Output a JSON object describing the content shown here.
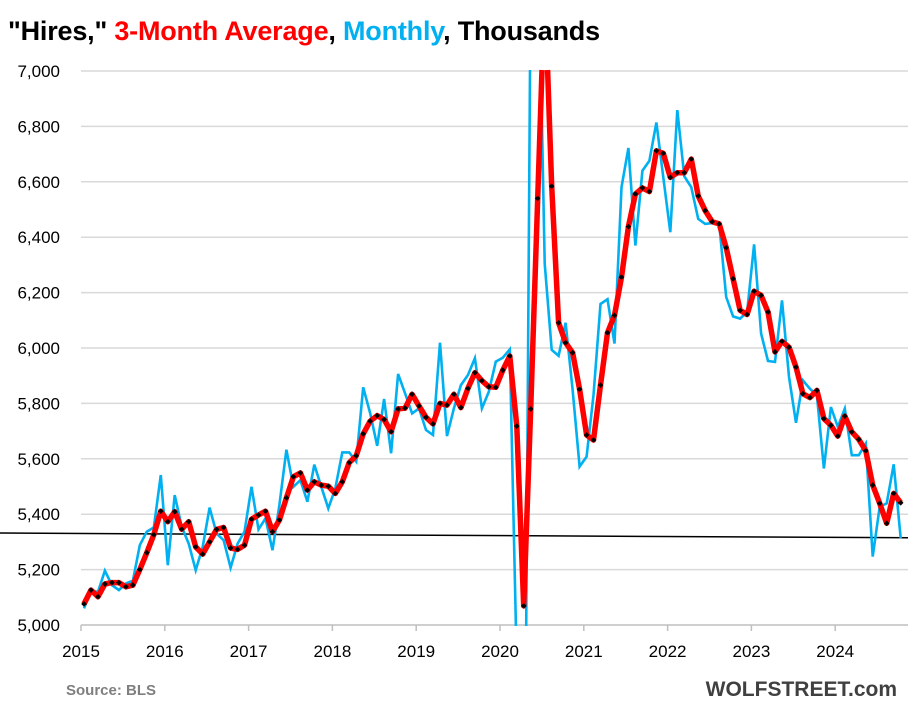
{
  "title": {
    "part1": "\"Hires,\" ",
    "part2": "3-Month Average",
    "sep1": ", ",
    "part3": "Monthly",
    "sep2": ", ",
    "part4": "Thousands"
  },
  "colors": {
    "avg": "#ff0000",
    "monthly": "#00b0f0",
    "reference": "#000000",
    "grid": "#d9d9d9"
  },
  "source": "Source: BLS",
  "brand": "WOLFSTREET.com",
  "chart_data": {
    "type": "line",
    "title": "\"Hires,\" 3-Month Average, Monthly, Thousands",
    "x_start": "2015-01",
    "x_frequency": "monthly",
    "x_ticks": [
      "2015",
      "2016",
      "2017",
      "2018",
      "2019",
      "2020",
      "2021",
      "2022",
      "2023",
      "2024"
    ],
    "y_ticks": [
      "5,000",
      "5,200",
      "5,400",
      "5,600",
      "5,800",
      "6,000",
      "6,200",
      "6,400",
      "6,600",
      "6,800",
      "7,000"
    ],
    "ylim": [
      5000,
      7000
    ],
    "grid": "horizontal",
    "series": [
      {
        "name": "Monthly",
        "color": "#00b0f0",
        "values": [
          5060,
          5123,
          5120,
          5196,
          5144,
          5126,
          5150,
          5160,
          5288,
          5337,
          5352,
          5541,
          5216,
          5469,
          5355,
          5294,
          5198,
          5282,
          5424,
          5330,
          5306,
          5207,
          5294,
          5337,
          5499,
          5345,
          5385,
          5270,
          5433,
          5633,
          5499,
          5523,
          5445,
          5579,
          5499,
          5421,
          5493,
          5623,
          5623,
          5590,
          5858,
          5764,
          5647,
          5816,
          5620,
          5906,
          5836,
          5764,
          5782,
          5704,
          5686,
          6019,
          5682,
          5782,
          5866,
          5902,
          5963,
          5782,
          5842,
          5951,
          5965,
          5995,
          4850,
          3700,
          7400,
          7600,
          6305,
          5993,
          5972,
          6091,
          5850,
          5572,
          5608,
          5830,
          6159,
          6176,
          6016,
          6580,
          6722,
          6370,
          6640,
          6676,
          6814,
          6616,
          6418,
          6859,
          6620,
          6580,
          6466,
          6448,
          6451,
          6448,
          6184,
          6114,
          6106,
          6130,
          6374,
          6052,
          5953,
          5950,
          6172,
          5896,
          5730,
          5883,
          5853,
          5829,
          5565,
          5787,
          5715,
          5781,
          5613,
          5613,
          5655,
          5247,
          5427,
          5439,
          5580,
          5313
        ]
      },
      {
        "name": "3-Month Average",
        "color": "#ff0000",
        "values": [
          5076,
          5126,
          5102,
          5148,
          5153,
          5153,
          5138,
          5144,
          5200,
          5261,
          5326,
          5411,
          5373,
          5409,
          5346,
          5373,
          5282,
          5256,
          5300,
          5345,
          5352,
          5278,
          5273,
          5288,
          5382,
          5397,
          5411,
          5337,
          5379,
          5459,
          5535,
          5549,
          5487,
          5517,
          5505,
          5501,
          5475,
          5517,
          5586,
          5611,
          5690,
          5736,
          5756,
          5742,
          5698,
          5780,
          5783,
          5833,
          5791,
          5750,
          5726,
          5800,
          5794,
          5833,
          5785,
          5854,
          5911,
          5882,
          5860,
          5858,
          5920,
          5971,
          5718,
          5069,
          5780,
          6540,
          7300,
          6584,
          6091,
          6019,
          5983,
          5851,
          5686,
          5668,
          5866,
          6055,
          6118,
          6256,
          6438,
          6556,
          6578,
          6565,
          6712,
          6703,
          6616,
          6633,
          6633,
          6682,
          6549,
          6496,
          6456,
          6448,
          6362,
          6250,
          6136,
          6121,
          6205,
          6190,
          6130,
          5986,
          6024,
          6003,
          5931,
          5835,
          5821,
          5847,
          5745,
          5721,
          5682,
          5754,
          5697,
          5670,
          5629,
          5505,
          5439,
          5367,
          5475,
          5441
        ]
      }
    ],
    "reference_line": {
      "start": 5332,
      "end": 5315
    }
  }
}
